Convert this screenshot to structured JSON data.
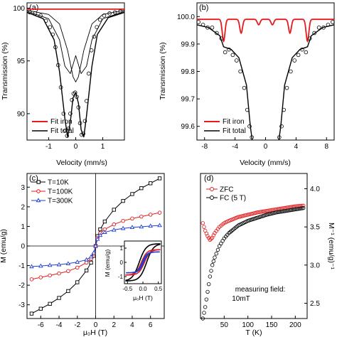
{
  "figure": {
    "panels": {
      "a": "(a)",
      "b": "(b)",
      "c": "(c)",
      "d": "(d)"
    },
    "labels": {
      "a_y": "Transmission (%)",
      "a_x": "Velocity (mm/s)",
      "b_y": "Transmission (%)",
      "b_x": "Velocity (mm/s)",
      "c_y": "M (emu/g)",
      "c_x": "μ₀H (T)",
      "inset_y": "M (emu/g)",
      "inset_x": "μ₀H (T)",
      "d_y": "M⁻¹ (emu/g)⁻¹",
      "d_x": "T (K)",
      "d_note_line1": "measuring field:",
      "d_note_line2": "10mT"
    },
    "legends": {
      "a": [
        "Fit iron",
        "Fit total"
      ],
      "b": [
        "Fit iron",
        "Fit total"
      ],
      "c": [
        "T=10K",
        "T=100K",
        "T=300K"
      ],
      "d": [
        "ZFC",
        "FC (5 T)"
      ]
    },
    "colors": {
      "iron": "#e41a1c",
      "total": "#000000",
      "t10": "#000000",
      "t100": "#e41a1c",
      "t300": "#1f3fd0",
      "zfc": "#e41a1c",
      "fc": "#000000"
    }
  },
  "chart_data": [
    {
      "panel": "a",
      "type": "scatter",
      "xlabel": "Velocity (mm/s)",
      "ylabel": "Transmission (%)",
      "xlim": [
        -1.8,
        1.8
      ],
      "ylim": [
        87.5,
        100.5
      ],
      "xticks": [
        "-1",
        "0",
        "1"
      ],
      "yticks": [
        "90",
        "95",
        "100"
      ],
      "series": [
        {
          "name": "Fit iron",
          "style": "line",
          "x": [
            -1.8,
            -0.9,
            0.0,
            0.9,
            1.8
          ],
          "y": [
            99.9,
            99.9,
            99.9,
            99.9,
            99.9
          ]
        },
        {
          "name": "Fit total",
          "style": "line",
          "x": [
            -1.8,
            -1.2,
            -0.8,
            -0.6,
            -0.4,
            -0.3,
            -0.2,
            -0.1,
            0.0,
            0.1,
            0.2,
            0.3,
            0.4,
            0.6,
            0.8,
            1.2,
            1.8
          ],
          "y": [
            99.6,
            99.0,
            97.0,
            94.0,
            89.5,
            87.8,
            89.2,
            91.5,
            92.0,
            91.0,
            88.5,
            87.8,
            89.8,
            94.5,
            97.5,
            99.1,
            99.6
          ]
        },
        {
          "name": "Component 1",
          "style": "line",
          "x": [
            -1.8,
            -1.0,
            -0.6,
            -0.4,
            -0.2,
            0.0,
            0.2,
            0.4,
            0.6,
            1.0,
            1.8
          ],
          "y": [
            99.7,
            99.0,
            97.0,
            94.5,
            93.8,
            95.5,
            93.8,
            94.5,
            97.0,
            99.0,
            99.7
          ]
        },
        {
          "name": "Component 2",
          "style": "line",
          "x": [
            -1.8,
            -1.0,
            -0.6,
            -0.3,
            -0.1,
            0.0,
            0.1,
            0.3,
            0.6,
            1.0,
            1.8
          ],
          "y": [
            99.8,
            99.4,
            98.5,
            96.0,
            93.5,
            93.0,
            93.5,
            96.0,
            98.5,
            99.4,
            99.8
          ]
        },
        {
          "name": "Data",
          "style": "points",
          "x": [
            -1.7,
            -1.5,
            -1.3,
            -1.1,
            -0.95,
            -0.85,
            -0.75,
            -0.65,
            -0.55,
            -0.45,
            -0.38,
            -0.32,
            -0.26,
            -0.2,
            -0.14,
            -0.08,
            -0.02,
            0.04,
            0.1,
            0.16,
            0.22,
            0.28,
            0.34,
            0.4,
            0.48,
            0.58,
            0.68,
            0.78,
            0.9,
            1.05,
            1.25,
            1.45,
            1.65
          ],
          "y": [
            99.6,
            99.5,
            99.3,
            98.8,
            98.2,
            97.5,
            96.3,
            94.6,
            92.5,
            90.0,
            88.4,
            87.9,
            88.6,
            90.0,
            91.3,
            91.9,
            92.0,
            91.6,
            90.6,
            89.1,
            88.0,
            88.1,
            89.3,
            91.2,
            93.8,
            96.0,
            97.3,
            98.2,
            98.9,
            99.3,
            99.5,
            99.6,
            99.7
          ]
        }
      ]
    },
    {
      "panel": "b",
      "type": "scatter",
      "xlabel": "Velocity (mm/s)",
      "ylabel": "Transmission (%)",
      "xlim": [
        -9,
        9
      ],
      "ylim": [
        99.55,
        100.05
      ],
      "xticks": [
        "-8",
        "-4",
        "0",
        "4",
        "8"
      ],
      "yticks": [
        "99.6",
        "99.7",
        "99.8",
        "99.9",
        "100.0"
      ],
      "series": [
        {
          "name": "Fit iron",
          "style": "line",
          "x": [
            -9,
            -5.5,
            -3.2,
            -0.9,
            0.9,
            3.2,
            5.5,
            9
          ],
          "y": [
            99.99,
            99.91,
            99.94,
            99.97,
            99.97,
            99.94,
            99.91,
            99.99
          ]
        },
        {
          "name": "Fit total",
          "style": "line",
          "x": [
            -9,
            -7.5,
            -6.0,
            -5.5,
            -4.5,
            -3.5,
            -2.5,
            -2.0,
            -1.5,
            1.5,
            2.0,
            2.5,
            3.5,
            4.5,
            5.5,
            6.0,
            7.5,
            9
          ],
          "y": [
            99.97,
            99.96,
            99.93,
            99.89,
            99.88,
            99.85,
            99.75,
            99.6,
            99.5,
            99.5,
            99.6,
            99.75,
            99.85,
            99.88,
            99.89,
            99.93,
            99.96,
            99.97
          ]
        },
        {
          "name": "Data",
          "style": "points",
          "x": [
            -8.8,
            -8.2,
            -7.6,
            -7.0,
            -6.4,
            -5.8,
            -5.3,
            -4.8,
            -4.3,
            -3.8,
            -3.3,
            -2.8,
            -2.4,
            -2.1,
            -1.8,
            1.8,
            2.1,
            2.4,
            2.8,
            3.3,
            3.8,
            4.3,
            4.8,
            5.3,
            5.8,
            6.4,
            7.0,
            7.6,
            8.2,
            8.8
          ],
          "y": [
            99.98,
            99.97,
            99.96,
            99.96,
            99.94,
            99.92,
            99.87,
            99.88,
            99.86,
            99.84,
            99.8,
            99.74,
            99.66,
            99.6,
            99.56,
            99.56,
            99.6,
            99.66,
            99.74,
            99.8,
            99.84,
            99.86,
            99.88,
            99.87,
            99.92,
            99.94,
            99.96,
            99.96,
            99.97,
            99.98
          ]
        }
      ]
    },
    {
      "panel": "c",
      "type": "line",
      "xlabel": "μ₀H (T)",
      "ylabel": "M (emu/g)",
      "xlim": [
        -7.5,
        7.5
      ],
      "ylim": [
        -3.7,
        3.7
      ],
      "xticks": [
        "-6",
        "-4",
        "-2",
        "0",
        "2",
        "4",
        "6"
      ],
      "yticks": [
        "-3",
        "-2",
        "-1",
        "0",
        "1",
        "2",
        "3"
      ],
      "series": [
        {
          "name": "T=10K",
          "x": [
            -7.0,
            -6.0,
            -5.0,
            -4.0,
            -3.0,
            -2.0,
            -1.0,
            -0.5,
            -0.2,
            0.0,
            0.2,
            0.5,
            1.0,
            2.0,
            3.0,
            4.0,
            5.0,
            6.0,
            7.0
          ],
          "y": [
            -3.45,
            -3.2,
            -2.95,
            -2.65,
            -2.3,
            -1.85,
            -1.25,
            -0.85,
            -0.5,
            0.0,
            0.5,
            0.85,
            1.25,
            1.85,
            2.3,
            2.65,
            2.95,
            3.2,
            3.45
          ]
        },
        {
          "name": "T=100K",
          "x": [
            -7.0,
            -6.0,
            -5.0,
            -4.0,
            -3.0,
            -2.0,
            -1.0,
            -0.5,
            -0.2,
            0.0,
            0.2,
            0.5,
            1.0,
            2.0,
            3.0,
            4.0,
            5.0,
            6.0,
            7.0
          ],
          "y": [
            -1.7,
            -1.6,
            -1.5,
            -1.4,
            -1.28,
            -1.1,
            -0.85,
            -0.65,
            -0.4,
            0.0,
            0.4,
            0.65,
            0.85,
            1.1,
            1.28,
            1.4,
            1.5,
            1.6,
            1.7
          ]
        },
        {
          "name": "T=300K",
          "x": [
            -7.0,
            -6.0,
            -5.0,
            -4.0,
            -3.0,
            -2.0,
            -1.0,
            -0.5,
            -0.2,
            0.0,
            0.2,
            0.5,
            1.0,
            2.0,
            3.0,
            4.0,
            5.0,
            6.0,
            7.0
          ],
          "y": [
            -1.05,
            -1.02,
            -0.98,
            -0.95,
            -0.9,
            -0.82,
            -0.7,
            -0.55,
            -0.35,
            0.0,
            0.35,
            0.55,
            0.7,
            0.82,
            0.9,
            0.95,
            0.98,
            1.02,
            1.05
          ]
        }
      ],
      "inset": {
        "xlabel": "μ₀H (T)",
        "ylabel": "M (emu/g)",
        "xlim": [
          -0.6,
          0.6
        ],
        "ylim": [
          -1.5,
          1.5
        ],
        "xticks": [
          "-0.5",
          "0.0",
          "0.5"
        ],
        "yticks": [
          "-1",
          "0",
          "1"
        ]
      }
    },
    {
      "panel": "d",
      "type": "scatter",
      "xlabel": "T (K)",
      "ylabel": "M⁻¹ (emu/g)⁻¹",
      "xlim": [
        0,
        225
      ],
      "ylim": [
        2.3,
        4.2
      ],
      "xticks": [
        "50",
        "100",
        "150",
        "200"
      ],
      "yticks": [
        "2.5",
        "3.0",
        "3.5",
        "4.0"
      ],
      "y_axis_side": "right",
      "series": [
        {
          "name": "ZFC",
          "x": [
            5,
            10,
            15,
            20,
            25,
            30,
            40,
            50,
            60,
            80,
            100,
            120,
            140,
            160,
            180,
            200,
            220
          ],
          "y": [
            3.55,
            3.45,
            3.38,
            3.33,
            3.36,
            3.42,
            3.5,
            3.55,
            3.58,
            3.63,
            3.66,
            3.69,
            3.71,
            3.73,
            3.75,
            3.77,
            3.78
          ]
        },
        {
          "name": "FC (5 T)",
          "x": [
            5,
            10,
            15,
            20,
            25,
            30,
            40,
            50,
            60,
            80,
            100,
            120,
            140,
            160,
            180,
            200,
            220
          ],
          "y": [
            2.3,
            2.45,
            2.65,
            2.85,
            3.0,
            3.1,
            3.25,
            3.35,
            3.42,
            3.52,
            3.58,
            3.62,
            3.66,
            3.69,
            3.71,
            3.73,
            3.75
          ]
        }
      ]
    }
  ]
}
